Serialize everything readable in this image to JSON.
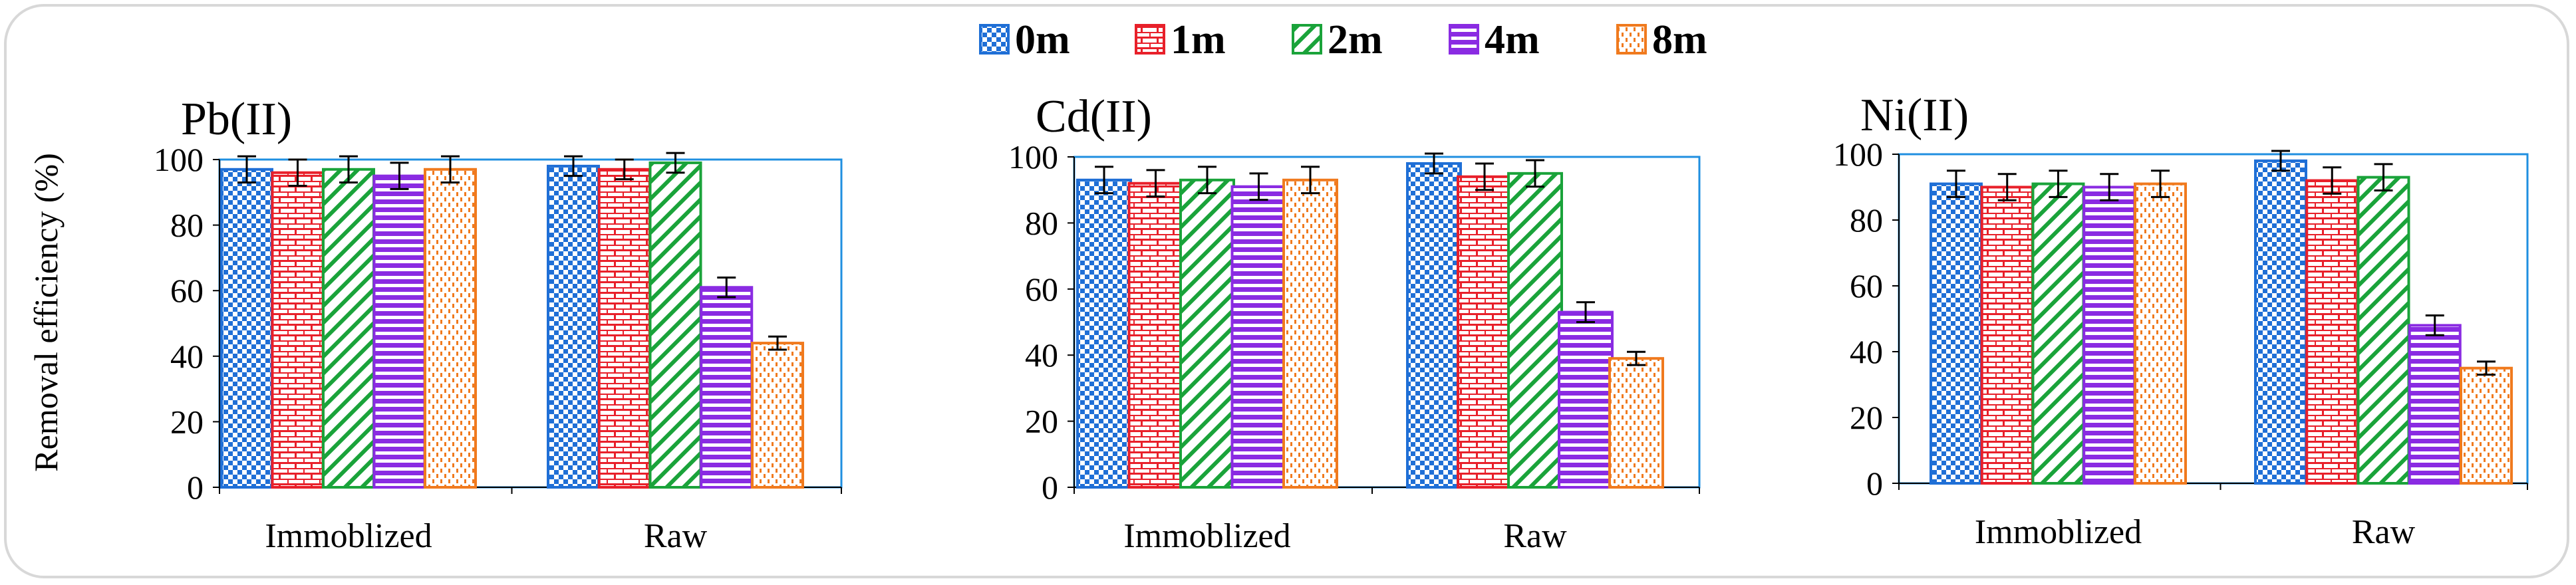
{
  "chart_data": {
    "type": "bar",
    "ylabel": "Removal efficiency (%)",
    "ylim": [
      0,
      100
    ],
    "yticks": [
      0,
      20,
      40,
      60,
      80,
      100
    ],
    "categories": [
      "Immoblized",
      "Raw"
    ],
    "legend": {
      "position": "top-center",
      "entries": [
        {
          "name": "0m",
          "color": "#1f6fd6",
          "pattern": "checker"
        },
        {
          "name": "1m",
          "color": "#e8202a",
          "pattern": "brick"
        },
        {
          "name": "2m",
          "color": "#1aa33a",
          "pattern": "diagonal"
        },
        {
          "name": "4m",
          "color": "#8a2be2",
          "pattern": "horizontal"
        },
        {
          "name": "8m",
          "color": "#f07a1e",
          "pattern": "dashes"
        }
      ]
    },
    "panels": [
      {
        "title": "Pb(II)",
        "series": [
          {
            "name": "0m",
            "values": [
              97,
              98
            ],
            "errors": [
              4,
              3
            ]
          },
          {
            "name": "1m",
            "values": [
              96,
              97
            ],
            "errors": [
              4,
              3
            ]
          },
          {
            "name": "2m",
            "values": [
              97,
              99
            ],
            "errors": [
              4,
              3
            ]
          },
          {
            "name": "4m",
            "values": [
              95,
              61
            ],
            "errors": [
              4,
              3
            ]
          },
          {
            "name": "8m",
            "values": [
              97,
              44
            ],
            "errors": [
              4,
              2
            ]
          }
        ]
      },
      {
        "title": "Cd(II)",
        "series": [
          {
            "name": "0m",
            "values": [
              93,
              98
            ],
            "errors": [
              4,
              3
            ]
          },
          {
            "name": "1m",
            "values": [
              92,
              94
            ],
            "errors": [
              4,
              4
            ]
          },
          {
            "name": "2m",
            "values": [
              93,
              95
            ],
            "errors": [
              4,
              4
            ]
          },
          {
            "name": "4m",
            "values": [
              91,
              53
            ],
            "errors": [
              4,
              3
            ]
          },
          {
            "name": "8m",
            "values": [
              93,
              39
            ],
            "errors": [
              4,
              2
            ]
          }
        ]
      },
      {
        "title": "Ni(II)",
        "series": [
          {
            "name": "0m",
            "values": [
              91,
              98
            ],
            "errors": [
              4,
              3
            ]
          },
          {
            "name": "1m",
            "values": [
              90,
              92
            ],
            "errors": [
              4,
              4
            ]
          },
          {
            "name": "2m",
            "values": [
              91,
              93
            ],
            "errors": [
              4,
              4
            ]
          },
          {
            "name": "4m",
            "values": [
              90,
              48
            ],
            "errors": [
              4,
              3
            ]
          },
          {
            "name": "8m",
            "values": [
              91,
              35
            ],
            "errors": [
              4,
              2
            ]
          }
        ]
      }
    ]
  }
}
